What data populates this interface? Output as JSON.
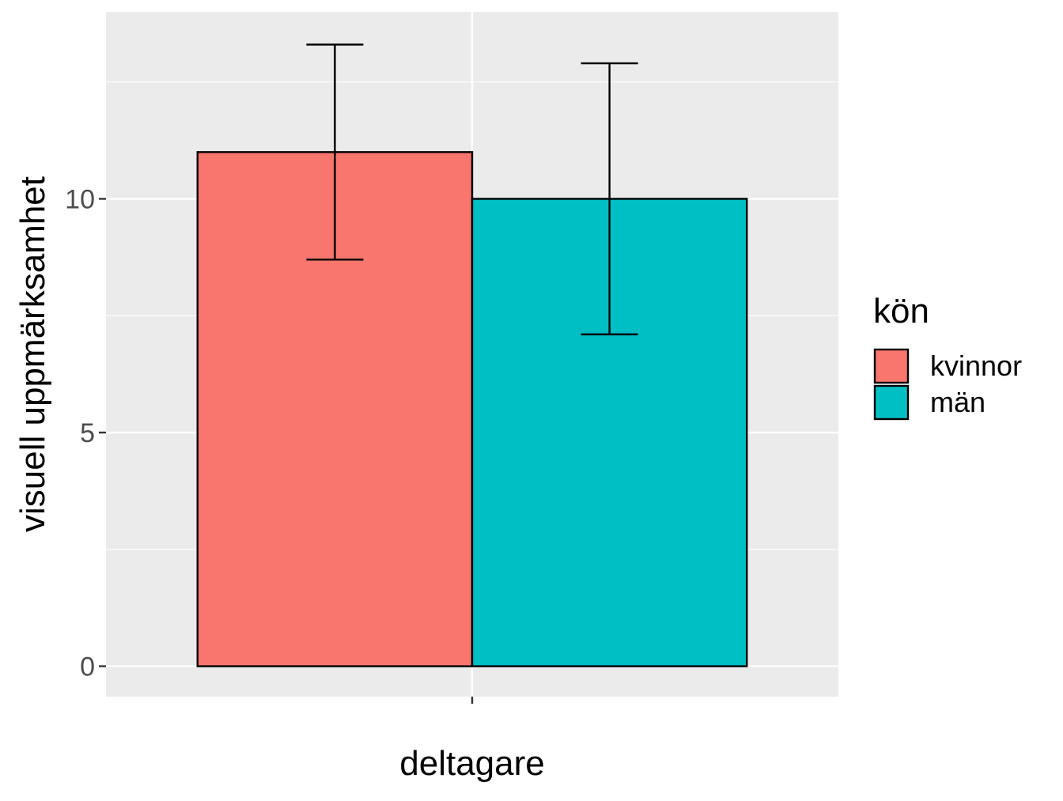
{
  "chart_data": {
    "type": "bar",
    "title": "",
    "xlabel": "deltagare",
    "ylabel": "visuell uppmärksamhet",
    "categories": [
      ""
    ],
    "series": [
      {
        "name": "kvinnor",
        "values": [
          11.0
        ],
        "error": [
          [
            8.7,
            13.3
          ]
        ],
        "color": "#F8766D"
      },
      {
        "name": "män",
        "values": [
          10.0
        ],
        "error": [
          [
            7.1,
            12.9
          ]
        ],
        "color": "#00BFC4"
      }
    ],
    "ylim": [
      -0.65,
      14.0
    ],
    "yticks": [
      0,
      5,
      10
    ],
    "ytick_labels": [
      "0",
      "5",
      "10"
    ],
    "grid": true,
    "legend": {
      "title": "kön",
      "placement": "right"
    },
    "panel_background": "#EBEBEB",
    "grid_color": "#FFFFFF"
  }
}
